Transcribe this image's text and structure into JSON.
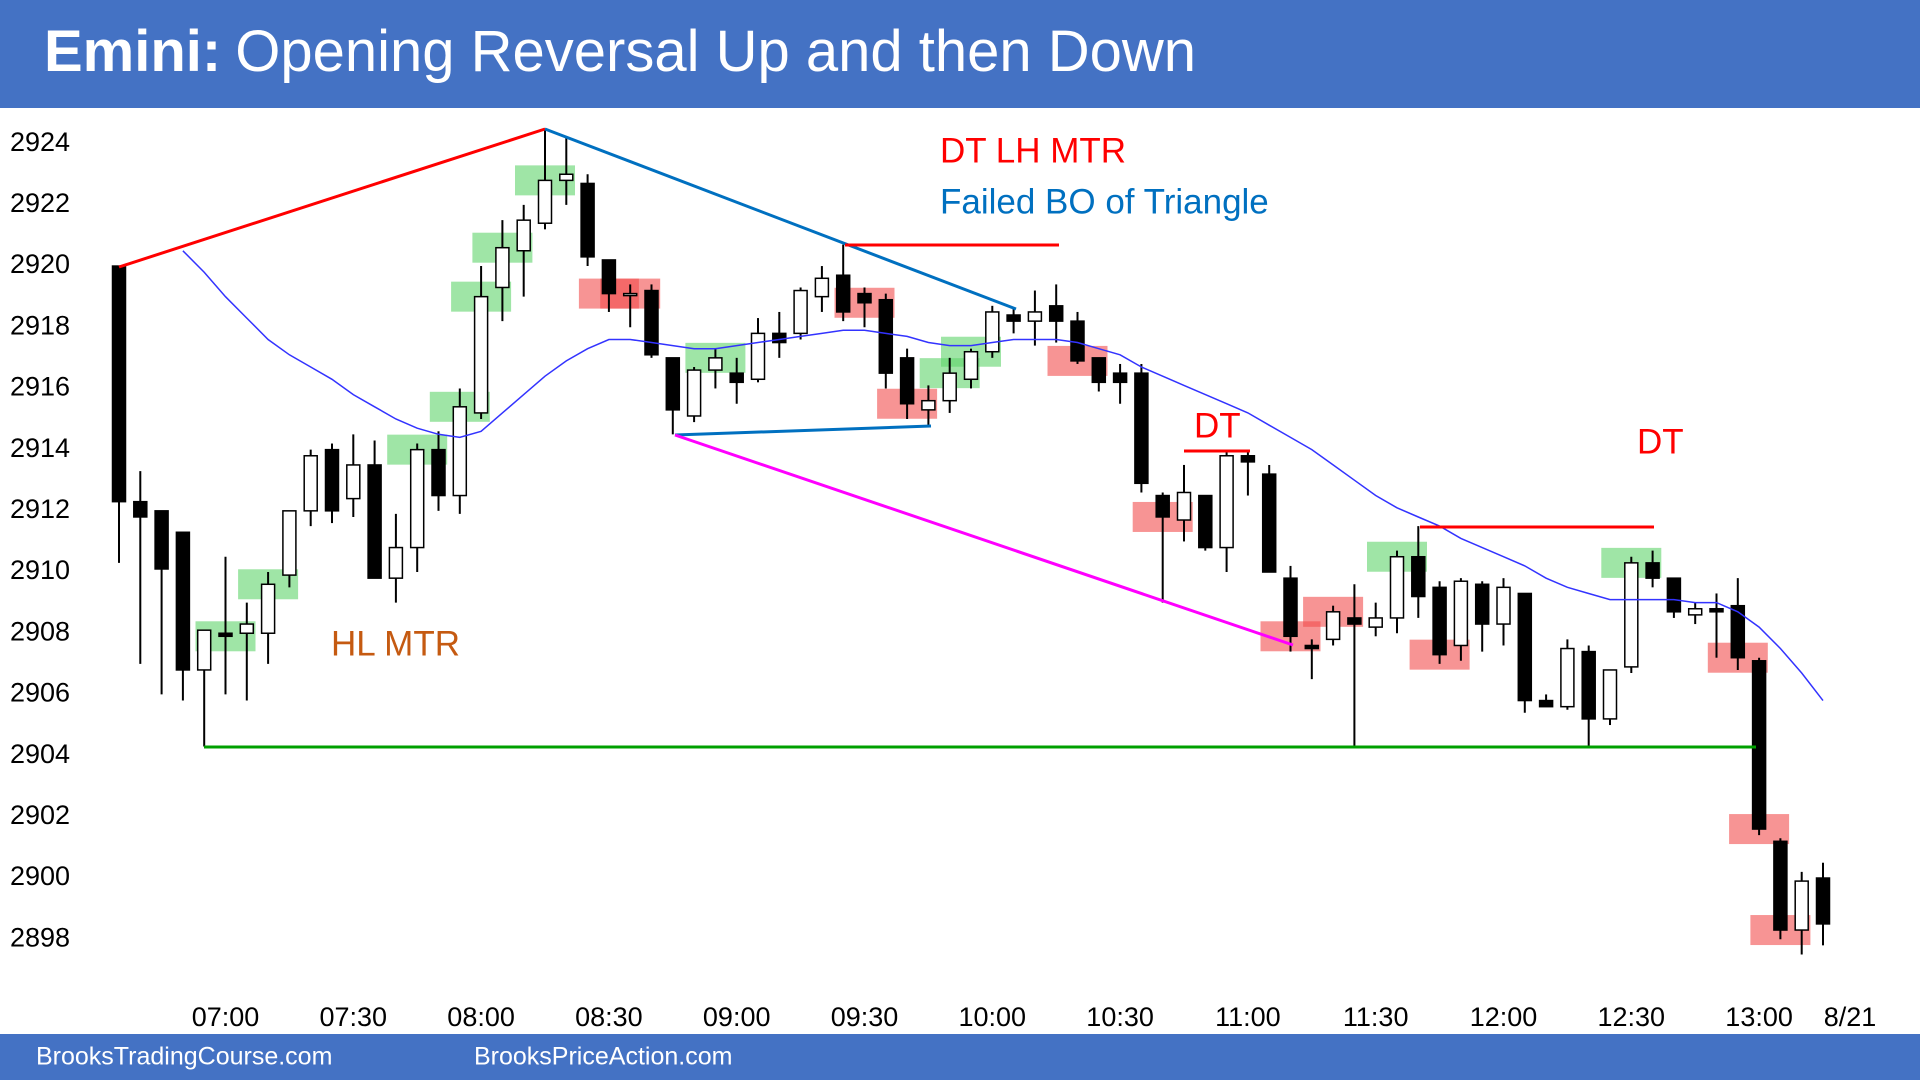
{
  "chart_data": {
    "type": "candlestick",
    "title_prefix": "Emini:",
    "title": "Opening Reversal Up and then Down",
    "footer": [
      "BrooksTradingCourse.com",
      "BrooksPriceAction.com"
    ],
    "date_label": "8/21",
    "annotations": [
      {
        "text": "DT LH MTR",
        "color": "#ff0000"
      },
      {
        "text": "Failed BO of Triangle",
        "color": "#0070c0"
      },
      {
        "text": "HL MTR",
        "color": "#c55a11"
      },
      {
        "text": "DT",
        "color": "#ff0000"
      },
      {
        "text": "DT",
        "color": "#ff0000"
      }
    ],
    "categories": [
      null,
      null,
      null,
      null,
      null,
      "07:00",
      null,
      null,
      null,
      null,
      null,
      "07:30",
      null,
      null,
      null,
      null,
      null,
      "08:00",
      null,
      null,
      null,
      null,
      null,
      "08:30",
      null,
      null,
      null,
      null,
      null,
      "09:00",
      null,
      null,
      null,
      null,
      null,
      "09:30",
      null,
      null,
      null,
      null,
      null,
      "10:00",
      null,
      null,
      null,
      null,
      null,
      "10:30",
      null,
      null,
      null,
      null,
      null,
      "11:00",
      null,
      null,
      null,
      null,
      null,
      "11:30",
      null,
      null,
      null,
      null,
      null,
      "12:00",
      null,
      null,
      null,
      null,
      null,
      "12:30",
      null,
      null,
      null,
      null,
      null,
      "13:00",
      null,
      null,
      null
    ],
    "open": [
      2920,
      2912.3,
      2912,
      2911.3,
      2906.8,
      2908,
      2908,
      2908,
      2909.9,
      2912,
      2914,
      2912.4,
      2913.5,
      2909.8,
      2910.8,
      2914,
      2912.5,
      2915.2,
      2919.3,
      2920.5,
      2921.4,
      2922.8,
      2922.7,
      2920.2,
      2919.1,
      2919.2,
      2917,
      2915.1,
      2916.6,
      2916.5,
      2916.3,
      2917.8,
      2917.8,
      2919,
      2919.7,
      2919.1,
      2918.9,
      2917,
      2915.3,
      2915.6,
      2916.3,
      2917.2,
      2918.4,
      2918.2,
      2918.7,
      2918.2,
      2917,
      2916.5,
      2916.5,
      2912.5,
      2911.7,
      2912.5,
      2910.8,
      2913.8,
      2913.2,
      2909.8,
      2907.6,
      2907.8,
      2908.5,
      2908.2,
      2908.5,
      2910.5,
      2909.5,
      2907.6,
      2909.6,
      2908.3,
      2909.3,
      2905.8,
      2905.6,
      2907.4,
      2905.2,
      2906.9,
      2910.3,
      2909.8,
      2908.6,
      2908.8,
      2908.9,
      2907.1,
      2901.2,
      2898.3,
      2900
    ],
    "high": [
      2920,
      2913.3,
      2911.8,
      2911.3,
      2908.1,
      2910.5,
      2909,
      2910,
      2912,
      2914,
      2914.2,
      2914.5,
      2914.3,
      2911.9,
      2914.2,
      2914.6,
      2916,
      2920,
      2921.5,
      2922,
      2924.5,
      2924.2,
      2923,
      2920.2,
      2919.4,
      2919.4,
      2917,
      2916.7,
      2917.3,
      2917,
      2918.3,
      2918.5,
      2919.3,
      2920,
      2920.7,
      2919.3,
      2919.1,
      2917.3,
      2916.1,
      2917,
      2917.3,
      2918.7,
      2918.6,
      2919.2,
      2919.4,
      2918.5,
      2917,
      2916.8,
      2916.8,
      2912.6,
      2913.5,
      2912.5,
      2914,
      2914,
      2913.5,
      2910.2,
      2907.8,
      2908.9,
      2909.6,
      2909,
      2910.7,
      2911.5,
      2909.7,
      2909.8,
      2909.7,
      2909.8,
      2909.3,
      2906,
      2907.8,
      2907.6,
      2906.8,
      2910.5,
      2910.7,
      2909.8,
      2909,
      2909.3,
      2909.8,
      2907.2,
      2901.3,
      2900.2,
      2900.5
    ],
    "low": [
      2910.3,
      2907,
      2906,
      2905.8,
      2904.3,
      2906,
      2905.8,
      2907,
      2909.5,
      2911.5,
      2911.6,
      2911.8,
      2909.8,
      2909,
      2910,
      2912,
      2911.9,
      2915,
      2918.2,
      2919,
      2921.2,
      2922,
      2920,
      2918.5,
      2918,
      2917,
      2914.5,
      2914.9,
      2916,
      2915.5,
      2916.2,
      2917,
      2917.6,
      2918.5,
      2918.2,
      2918,
      2916,
      2915,
      2914.8,
      2915.2,
      2916,
      2917,
      2917.8,
      2917.4,
      2917.5,
      2916.8,
      2915.9,
      2915.5,
      2912.6,
      2909,
      2911,
      2910.7,
      2910,
      2912.5,
      2910,
      2907.4,
      2906.5,
      2907.6,
      2904.3,
      2907.9,
      2908,
      2908.5,
      2907,
      2907.1,
      2907.4,
      2907.6,
      2905.4,
      2905.6,
      2905.5,
      2904.3,
      2905,
      2906.7,
      2909.5,
      2908.5,
      2908.3,
      2907.2,
      2906.8,
      2901.4,
      2898,
      2897.5,
      2897.8
    ],
    "close": [
      2912.3,
      2911.8,
      2910.1,
      2906.8,
      2908.1,
      2907.9,
      2908.3,
      2909.6,
      2912,
      2913.8,
      2912,
      2913.5,
      2909.8,
      2910.8,
      2914,
      2912.5,
      2915.4,
      2919,
      2920.6,
      2921.5,
      2922.8,
      2923,
      2920.3,
      2919.1,
      2919.1,
      2917.1,
      2915.3,
      2916.6,
      2917,
      2916.2,
      2917.8,
      2917.5,
      2919.2,
      2919.6,
      2918.5,
      2918.8,
      2916.5,
      2915.5,
      2915.6,
      2916.5,
      2917.2,
      2918.5,
      2918.2,
      2918.5,
      2918.2,
      2916.9,
      2916.2,
      2916.2,
      2912.9,
      2911.8,
      2912.6,
      2910.8,
      2913.8,
      2913.6,
      2910,
      2907.9,
      2907.5,
      2908.7,
      2908.3,
      2908.5,
      2910.5,
      2909.2,
      2907.3,
      2909.7,
      2908.3,
      2909.5,
      2905.8,
      2905.6,
      2907.5,
      2905.2,
      2906.8,
      2910.3,
      2909.8,
      2908.7,
      2908.8,
      2908.7,
      2907.2,
      2901.6,
      2898.3,
      2899.9,
      2898.5
    ],
    "ma_values": [
      null,
      null,
      null,
      2920.5,
      2919.8,
      2919.0,
      2918.3,
      2917.6,
      2917.1,
      2916.7,
      2916.3,
      2915.8,
      2915.4,
      2915.0,
      2914.7,
      2914.5,
      2914.4,
      2914.6,
      2915.2,
      2915.8,
      2916.4,
      2916.9,
      2917.3,
      2917.6,
      2917.6,
      2917.5,
      2917.4,
      2917.3,
      2917.3,
      2917.4,
      2917.5,
      2917.6,
      2917.7,
      2917.8,
      2917.9,
      2917.9,
      2917.8,
      2917.7,
      2917.5,
      2917.4,
      2917.4,
      2917.5,
      2917.6,
      2917.6,
      2917.6,
      2917.5,
      2917.3,
      2917.1,
      2916.7,
      2916.4,
      2916.1,
      2915.8,
      2915.5,
      2915.2,
      2914.8,
      2914.4,
      2914.0,
      2913.5,
      2913.0,
      2912.5,
      2912.1,
      2911.8,
      2911.5,
      2911.1,
      2910.8,
      2910.5,
      2910.2,
      2909.8,
      2909.5,
      2909.3,
      2909.1,
      2909.1,
      2909.1,
      2909.1,
      2909.0,
      2909.0,
      2908.7,
      2908.2,
      2907.5,
      2906.7,
      2905.8
    ],
    "ma_color": "#3333ff",
    "up_color": "#ffffff",
    "down_color": "#000000",
    "highlight_colors": [
      null,
      null,
      null,
      null,
      null,
      "#5fd36b",
      null,
      "#5fd36b",
      null,
      null,
      null,
      null,
      null,
      null,
      "#5fd36b",
      null,
      "#5fd36b",
      "#5fd36b",
      "#5fd36b",
      null,
      "#5fd36b",
      null,
      null,
      "#f24d4d",
      "#f24d4d",
      null,
      null,
      null,
      "#5fd36b",
      null,
      null,
      null,
      null,
      null,
      null,
      "#f24d4d",
      null,
      "#f24d4d",
      null,
      "#5fd36b",
      "#5fd36b",
      null,
      null,
      null,
      null,
      "#f24d4d",
      null,
      null,
      null,
      "#f24d4d",
      null,
      null,
      null,
      null,
      null,
      "#f24d4d",
      null,
      "#f24d4d",
      null,
      null,
      "#5fd36b",
      null,
      "#f24d4d",
      null,
      null,
      null,
      null,
      null,
      null,
      null,
      null,
      "#5fd36b",
      null,
      null,
      null,
      null,
      "#f24d4d",
      "#f24d4d",
      "#f24d4d",
      null,
      null
    ],
    "ylim": [
      2896.7,
      2925.1
    ],
    "yticks": [
      2898,
      2900,
      2902,
      2904,
      2906,
      2908,
      2910,
      2912,
      2914,
      2916,
      2918,
      2920,
      2922,
      2924
    ],
    "grid": false
  }
}
